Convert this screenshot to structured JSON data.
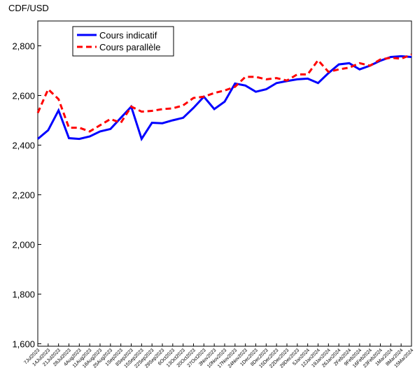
{
  "chart_data": {
    "type": "line",
    "title": "CDF/USD",
    "categories": [
      "7Jul2023",
      "14Jul2023",
      "21Jul2023",
      "28Jul2023",
      "4Aug2023",
      "11Aug2023",
      "18Aug2023",
      "25Aug2023",
      "1Sep2023",
      "8Sep2023",
      "15Sep2023",
      "22Sep2023",
      "29Sep2023",
      "6Oct2023",
      "13Oct2023",
      "20Oct2023",
      "27Oct2023",
      "3Nov2023",
      "10Nov2023",
      "17Nov2023",
      "24Nov2023",
      "1Dec2023",
      "8Dec2023",
      "15Dec2023",
      "22Dec2023",
      "29Dec2023",
      "5Jan2024",
      "12Jan2024",
      "19Jan2024",
      "26Jan2024",
      "2Feb2024",
      "9Feb2024",
      "16Feb2024",
      "23Feb2024",
      "1Mar2024",
      "8Mar2024",
      "15Mar2024"
    ],
    "series": [
      {
        "name": "Cours indicatif",
        "color": "#0000ff",
        "dash": false,
        "values": [
          2425,
          2460,
          2540,
          2428,
          2425,
          2435,
          2455,
          2465,
          2510,
          2555,
          2425,
          2490,
          2488,
          2500,
          2510,
          2550,
          2595,
          2545,
          2575,
          2648,
          2640,
          2615,
          2625,
          2650,
          2658,
          2665,
          2668,
          2650,
          2690,
          2725,
          2730,
          2705,
          2720,
          2740,
          2755,
          2758,
          2755
        ]
      },
      {
        "name": "Cours parallèle",
        "color": "#ff0000",
        "dash": true,
        "values": [
          2530,
          2625,
          2585,
          2470,
          2470,
          2455,
          2480,
          2505,
          2490,
          2555,
          2535,
          2538,
          2545,
          2548,
          2560,
          2590,
          2595,
          2610,
          2620,
          2635,
          2675,
          2675,
          2665,
          2670,
          2660,
          2685,
          2685,
          2742,
          2695,
          2705,
          2712,
          2730,
          2720,
          2745,
          2752,
          2748,
          2765
        ]
      }
    ],
    "ylim": [
      1590,
      2900
    ],
    "yticks": [
      {
        "value": 1600,
        "label": "1,600"
      },
      {
        "value": 1800,
        "label": "1,800"
      },
      {
        "value": 2000,
        "label": "2,000"
      },
      {
        "value": 2200,
        "label": "2,200"
      },
      {
        "value": 2400,
        "label": "2,400"
      },
      {
        "value": 2600,
        "label": "2,600"
      },
      {
        "value": 2800,
        "label": "2,800"
      }
    ],
    "grid": false,
    "legend": "top-left"
  }
}
